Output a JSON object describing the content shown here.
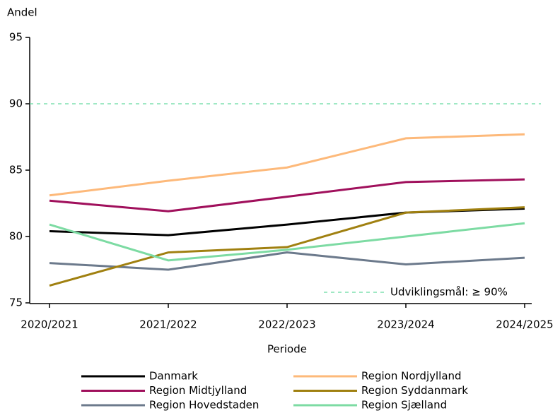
{
  "chart_data": {
    "type": "line",
    "y_label": "Andel",
    "x_label": "Periode",
    "categories": [
      "2020/2021",
      "2021/2022",
      "2022/2023",
      "2023/2024",
      "2024/2025"
    ],
    "series": [
      {
        "name": "Danmark",
        "color": "#000000",
        "values": [
          80.4,
          80.1,
          80.9,
          81.8,
          82.1
        ]
      },
      {
        "name": "Region Midtjylland",
        "color": "#a0105c",
        "values": [
          82.7,
          81.9,
          83.0,
          84.1,
          84.3
        ]
      },
      {
        "name": "Region Hovedstaden",
        "color": "#6c7a8c",
        "values": [
          78.0,
          77.5,
          78.8,
          77.9,
          78.4
        ]
      },
      {
        "name": "Region Nordjylland",
        "color": "#fdb97a",
        "values": [
          83.1,
          84.2,
          85.2,
          87.4,
          87.7
        ]
      },
      {
        "name": "Region Syddanmark",
        "color": "#a08010",
        "values": [
          76.3,
          78.8,
          79.2,
          81.8,
          82.2
        ]
      },
      {
        "name": "Region Sjælland",
        "color": "#7ddba3",
        "values": [
          80.9,
          78.2,
          79.0,
          80.0,
          81.0
        ]
      }
    ],
    "goal": {
      "value": 90,
      "label": "Udviklingsmål: ≥ 90%",
      "color": "#66d9a0"
    },
    "ylim": [
      75,
      95
    ],
    "yticks": [
      75,
      80,
      85,
      90,
      95
    ]
  }
}
